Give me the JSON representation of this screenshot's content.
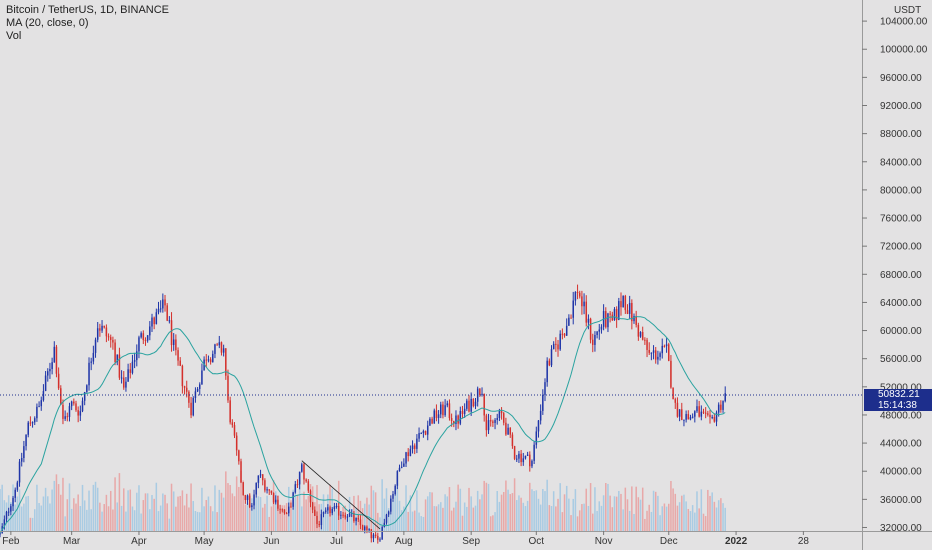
{
  "legend": {
    "symbol": "Bitcoin / TetherUS, 1D, BINANCE",
    "indicator": "MA (20, close, 0)",
    "volume": "Vol"
  },
  "price_scale": {
    "unit_label": "USDT",
    "ticks": [
      104000,
      100000,
      96000,
      92000,
      88000,
      84000,
      80000,
      76000,
      72000,
      68000,
      64000,
      60000,
      56000,
      52000,
      48000,
      44000,
      40000,
      36000,
      32000
    ],
    "tick_labels": [
      "104000.00",
      "100000.00",
      "96000.00",
      "92000.00",
      "88000.00",
      "84000.00",
      "80000.00",
      "76000.00",
      "72000.00",
      "68000.00",
      "64000.00",
      "60000.00",
      "56000.00",
      "52000.00",
      "48000.00",
      "44000.00",
      "40000.00",
      "36000.00",
      "32000.00"
    ]
  },
  "time_scale": {
    "labels": [
      "Feb",
      "Mar",
      "Apr",
      "May",
      "Jun",
      "Jul",
      "Aug",
      "Sep",
      "Oct",
      "Nov",
      "Dec",
      "2022",
      "28"
    ]
  },
  "last_price": {
    "value": "50832.21",
    "countdown": "15:14:38"
  },
  "colors": {
    "up": "#1f35a8",
    "down": "#d4302c",
    "ma": "#2ba3a0",
    "vol_up": "#a9cbe3",
    "vol_down": "#e8a8a8",
    "background": "#e3e2e3",
    "last_price_badge": "#1d2e8c"
  },
  "chart_data": {
    "type": "candlestick",
    "title": "Bitcoin / TetherUS, 1D, BINANCE",
    "y_range": [
      31500,
      107000
    ],
    "x_range": [
      "2021-01-27",
      "2022-02-28"
    ],
    "show_grid": false,
    "series": [
      {
        "name": "BTCUSDT",
        "kind": "candles",
        "trend_anchors": [
          {
            "date": "2021-01-27",
            "close": 31000
          },
          {
            "date": "2021-02-03",
            "close": 37500
          },
          {
            "date": "2021-02-09",
            "close": 46500
          },
          {
            "date": "2021-02-14",
            "close": 49000
          },
          {
            "date": "2021-02-21",
            "close": 57500
          },
          {
            "date": "2021-02-25",
            "close": 47000
          },
          {
            "date": "2021-03-01",
            "close": 49500
          },
          {
            "date": "2021-03-05",
            "close": 48500
          },
          {
            "date": "2021-03-13",
            "close": 61000
          },
          {
            "date": "2021-03-20",
            "close": 58000
          },
          {
            "date": "2021-03-25",
            "close": 51500
          },
          {
            "date": "2021-04-01",
            "close": 58500
          },
          {
            "date": "2021-04-13",
            "close": 63500
          },
          {
            "date": "2021-04-18",
            "close": 56000
          },
          {
            "date": "2021-04-25",
            "close": 49000
          },
          {
            "date": "2021-05-02",
            "close": 56500
          },
          {
            "date": "2021-05-10",
            "close": 57500
          },
          {
            "date": "2021-05-12",
            "close": 49500
          },
          {
            "date": "2021-05-19",
            "close": 37000
          },
          {
            "date": "2021-05-23",
            "close": 34800
          },
          {
            "date": "2021-05-26",
            "close": 39500
          },
          {
            "date": "2021-06-08",
            "close": 33500
          },
          {
            "date": "2021-06-15",
            "close": 40500
          },
          {
            "date": "2021-06-22",
            "close": 32500
          },
          {
            "date": "2021-06-28",
            "close": 34500
          },
          {
            "date": "2021-07-06",
            "close": 34000
          },
          {
            "date": "2021-07-20",
            "close": 30000
          },
          {
            "date": "2021-07-25",
            "close": 35000
          },
          {
            "date": "2021-07-31",
            "close": 41500
          },
          {
            "date": "2021-08-14",
            "close": 47500
          },
          {
            "date": "2021-08-20",
            "close": 49000
          },
          {
            "date": "2021-08-25",
            "close": 47000
          },
          {
            "date": "2021-09-06",
            "close": 52000
          },
          {
            "date": "2021-09-08",
            "close": 46000
          },
          {
            "date": "2021-09-15",
            "close": 48000
          },
          {
            "date": "2021-09-21",
            "close": 42500
          },
          {
            "date": "2021-09-29",
            "close": 41500
          },
          {
            "date": "2021-10-06",
            "close": 55000
          },
          {
            "date": "2021-10-15",
            "close": 61000
          },
          {
            "date": "2021-10-20",
            "close": 66000
          },
          {
            "date": "2021-10-27",
            "close": 58500
          },
          {
            "date": "2021-11-01",
            "close": 61500
          },
          {
            "date": "2021-11-05",
            "close": 61000
          },
          {
            "date": "2021-11-10",
            "close": 64800
          },
          {
            "date": "2021-11-17",
            "close": 60000
          },
          {
            "date": "2021-11-22",
            "close": 56500
          },
          {
            "date": "2021-11-30",
            "close": 57000
          },
          {
            "date": "2021-12-04",
            "close": 49000
          },
          {
            "date": "2021-12-10",
            "close": 47500
          },
          {
            "date": "2021-12-14",
            "close": 48500
          },
          {
            "date": "2021-12-20",
            "close": 46700
          },
          {
            "date": "2021-12-27",
            "close": 50800
          }
        ]
      },
      {
        "name": "MA (20, close, 0)",
        "kind": "line"
      },
      {
        "name": "Vol",
        "kind": "volume"
      }
    ],
    "trendline": {
      "from": {
        "date": "2021-06-15",
        "price": 41500
      },
      "to": {
        "date": "2021-07-21",
        "price": 31800
      }
    },
    "last_value": 50832.21
  }
}
